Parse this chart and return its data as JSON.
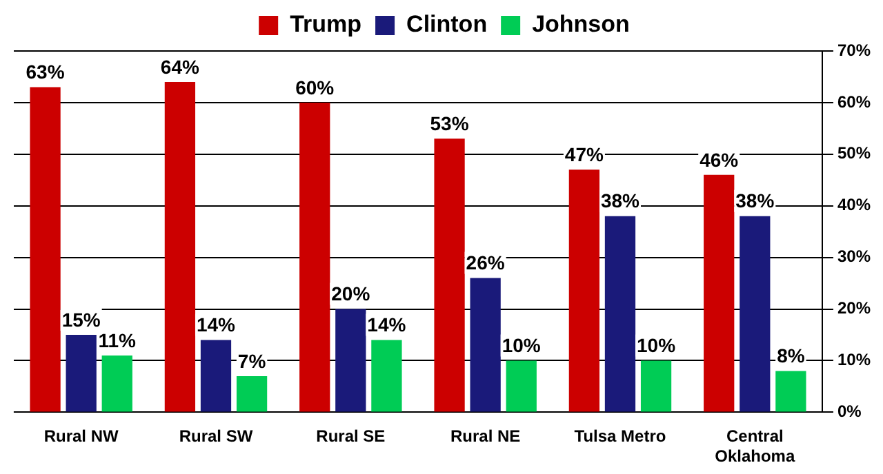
{
  "chart_data": {
    "type": "bar",
    "categories": [
      "Rural NW",
      "Rural SW",
      "Rural SE",
      "Rural NE",
      "Tulsa Metro",
      "Central Oklahoma"
    ],
    "series": [
      {
        "name": "Trump",
        "color": "#cc0000",
        "values": [
          63,
          64,
          60,
          53,
          47,
          46
        ],
        "value_labels": [
          "63%",
          "64%",
          "60%",
          "53%",
          "47%",
          "46%"
        ]
      },
      {
        "name": "Clinton",
        "color": "#1a1a7a",
        "values": [
          15,
          14,
          20,
          26,
          38,
          38
        ],
        "value_labels": [
          "15%",
          "14%",
          "20%",
          "26%",
          "38%",
          "38%"
        ]
      },
      {
        "name": "Johnson",
        "color": "#00cc55",
        "values": [
          11,
          7,
          14,
          10,
          10,
          8
        ],
        "value_labels": [
          "11%",
          "7%",
          "14%",
          "10%",
          "10%",
          "8%"
        ]
      }
    ],
    "ylim": [
      0,
      70
    ],
    "yticks": [
      {
        "value": 0,
        "label": "0%"
      },
      {
        "value": 10,
        "label": "10%"
      },
      {
        "value": 20,
        "label": "20%"
      },
      {
        "value": 30,
        "label": "30%"
      },
      {
        "value": 40,
        "label": "40%"
      },
      {
        "value": 50,
        "label": "50%"
      },
      {
        "value": 60,
        "label": "60%"
      },
      {
        "value": 70,
        "label": "70%"
      }
    ],
    "grid": "y",
    "legend": "top"
  }
}
